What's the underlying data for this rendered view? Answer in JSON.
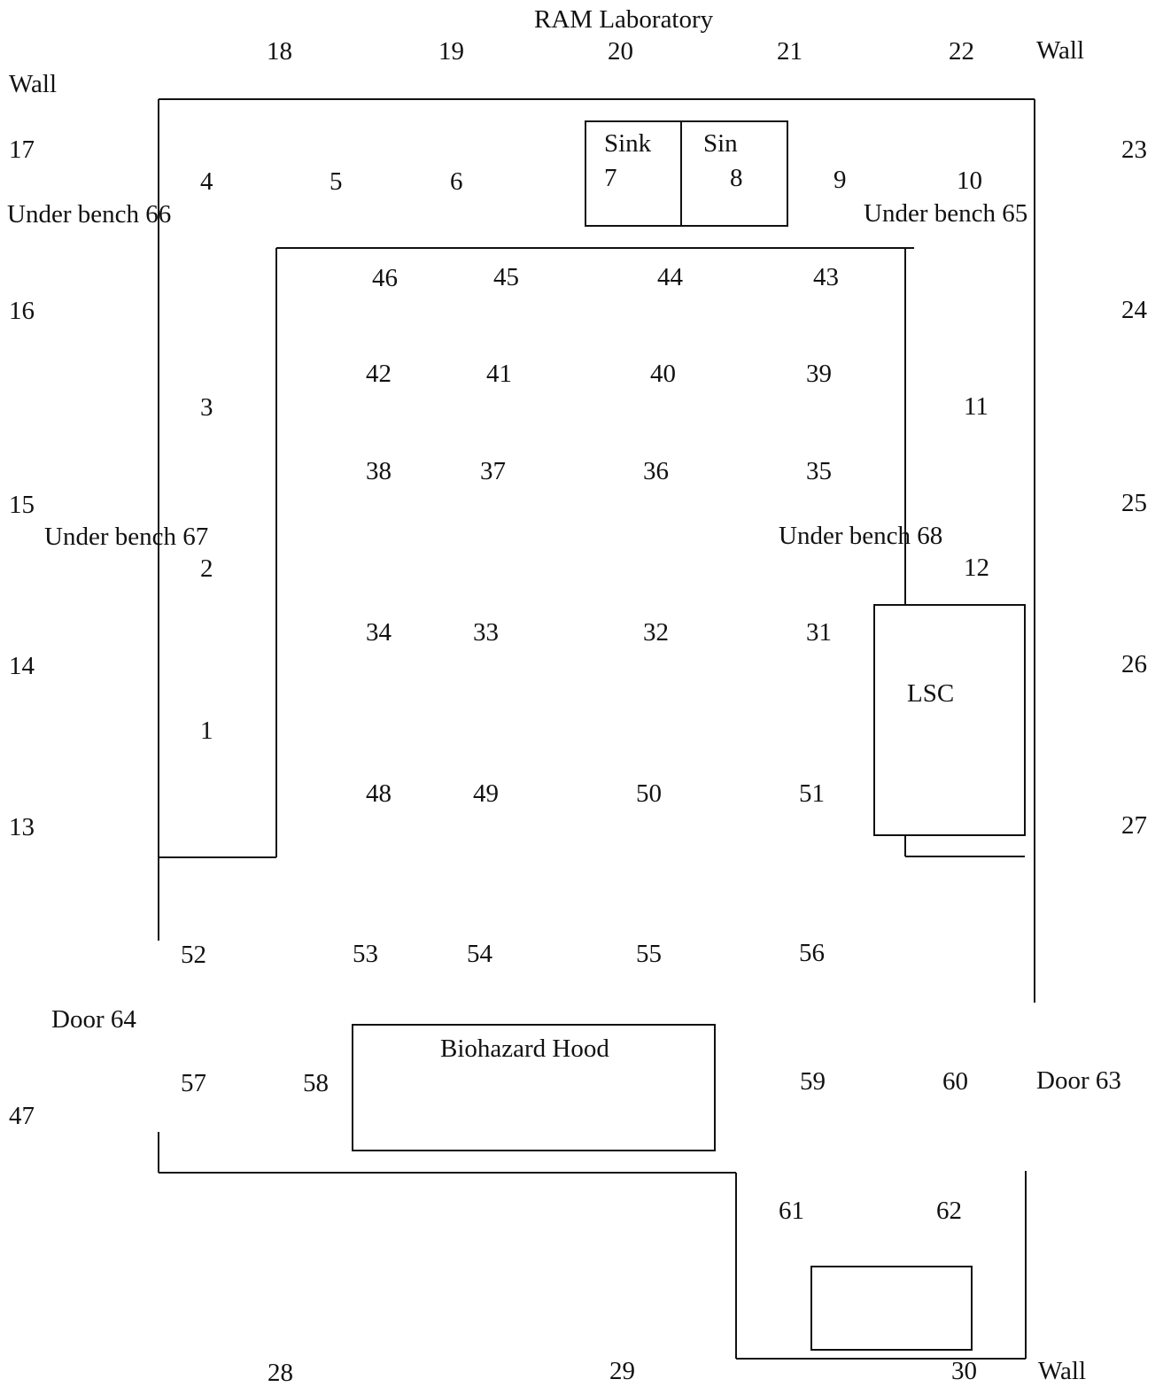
{
  "title": "RAM Laboratory",
  "labels": {
    "wall_top_right": "Wall",
    "wall_top_left": "Wall",
    "wall_bottom_right": "Wall",
    "door_left": "Door  64",
    "door_right": "Door 63",
    "under_bench_66": "Under bench   66",
    "under_bench_65": "Under bench  65",
    "under_bench_67": "Under bench 67",
    "under_bench_68": "Under bench 68",
    "sink_left": "Sink",
    "sink_right": "Sin",
    "lsc": "LSC",
    "biohazard_hood": "Biohazard Hood"
  },
  "wall_points": {
    "top": [
      "18",
      "19",
      "20",
      "21",
      "22"
    ],
    "left": [
      "17",
      "16",
      "15",
      "14",
      "13",
      "47"
    ],
    "right": [
      "23",
      "24",
      "25",
      "26",
      "27"
    ],
    "bottom": [
      "28",
      "29",
      "30"
    ]
  },
  "bench_points": {
    "back": [
      "4",
      "5",
      "6",
      "7",
      "8",
      "9",
      "10"
    ],
    "left": [
      "3",
      "2",
      "1"
    ],
    "right": [
      "11",
      "12"
    ]
  },
  "floor_grid": {
    "row1": [
      "46",
      "45",
      "44",
      "43"
    ],
    "row2": [
      "42",
      "41",
      "40",
      "39"
    ],
    "row3": [
      "38",
      "37",
      "36",
      "35"
    ],
    "row4": [
      "34",
      "33",
      "32",
      "31"
    ],
    "row5": [
      "48",
      "49",
      "50",
      "51"
    ],
    "row6": [
      "52",
      "53",
      "54",
      "55",
      "56"
    ]
  },
  "front_points": [
    "57",
    "58",
    "59",
    "60"
  ],
  "alcove_points": [
    "61",
    "62"
  ]
}
